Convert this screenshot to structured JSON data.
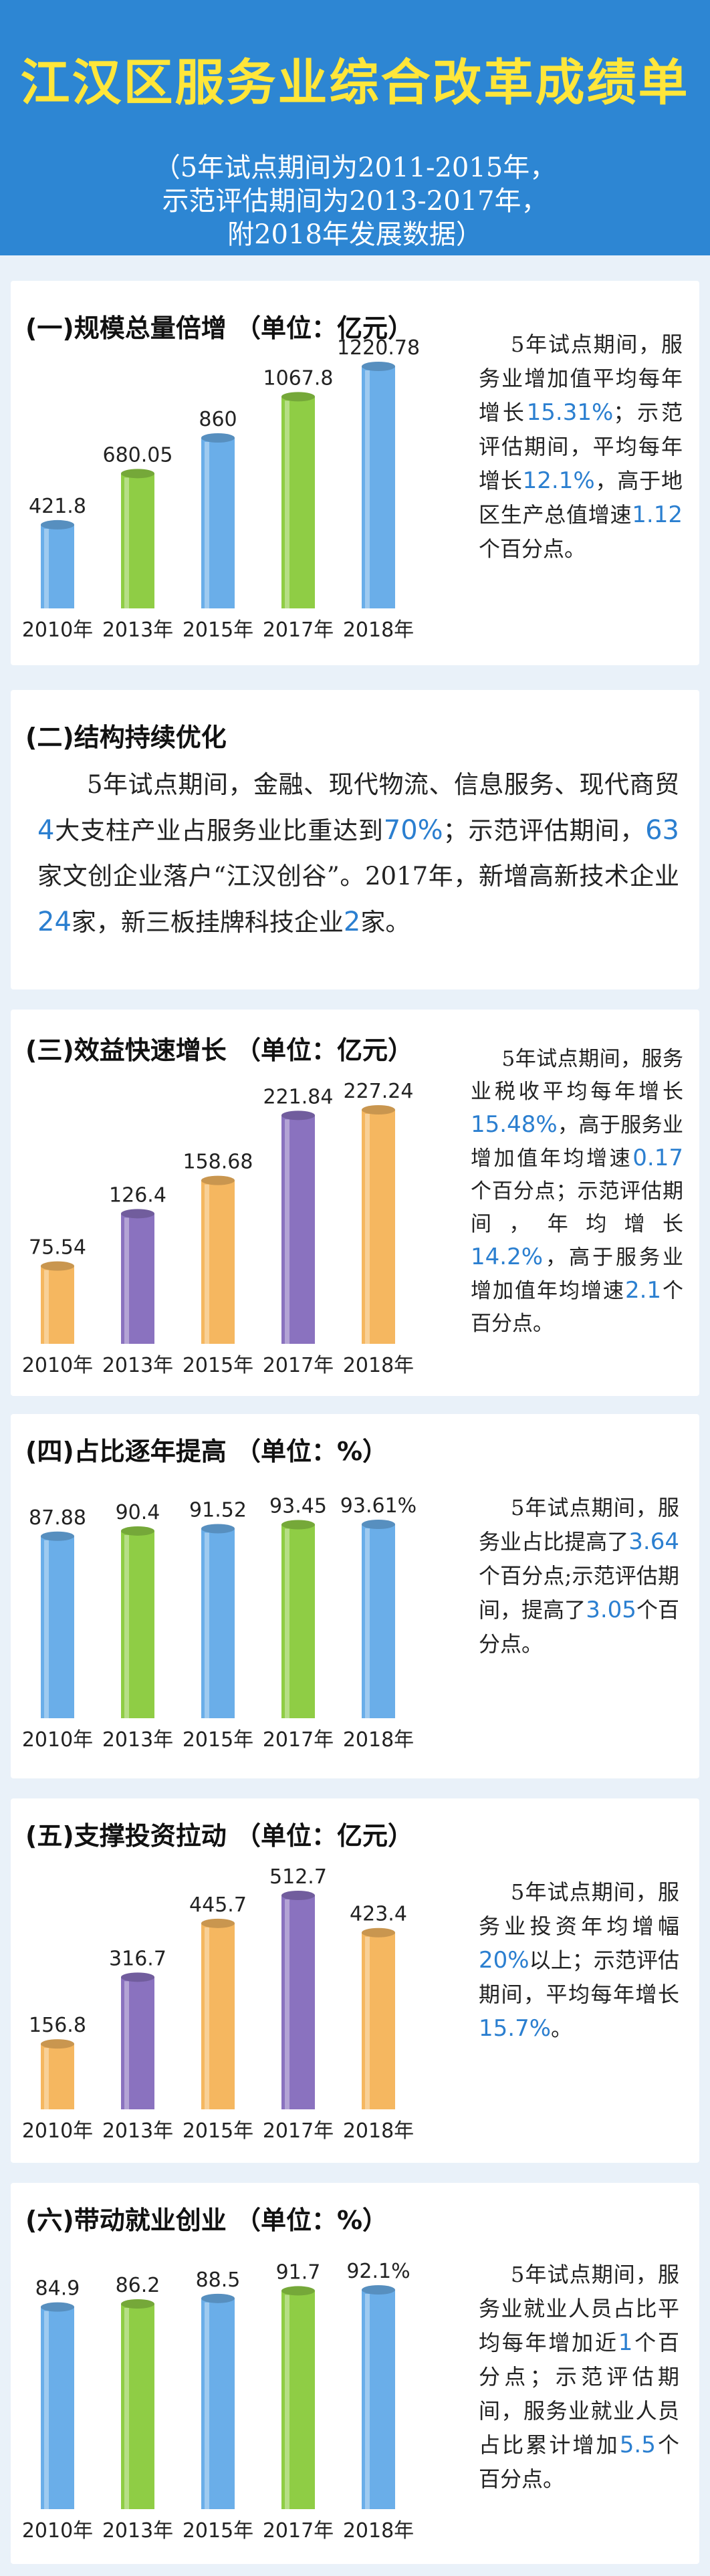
{
  "header": {
    "title": "江汉区服务业综合改革成绩单",
    "sub1": "（5年试点期间为2011-2015年，",
    "sub2": "示范评估期间为2013-2017年，",
    "sub3": "附2018年发展数据）"
  },
  "sections": [
    {
      "title": "(一)规模总量倍增  （单位：亿元）"
    },
    {
      "title": "(二)结构持续优化"
    },
    {
      "title": "(三)效益快速增长  （单位：亿元）"
    },
    {
      "title": "(四)占比逐年提高  （单位：%）"
    },
    {
      "title": "(五)支撑投资拉动  （单位：亿元）"
    },
    {
      "title": "(六)带动就业创业  （单位：%）"
    }
  ],
  "texts": {
    "s1": [
      "5年试点期间，服务业增加值平均每年增长",
      "15.31%",
      "；示范评估期间，平均每年增长",
      "12.1%",
      "，高于地区生产总值增速",
      "1.12",
      "个百分点。"
    ],
    "s2": [
      "5年试点期间，金融、现代物流、信息服务、现代商贸",
      "4",
      "大支柱产业占服务业比重达到",
      "70%",
      "；示范评估期间，",
      "63",
      "家文创企业落户“江汉创谷”。2017年，新增高新技术企业",
      "24",
      "家，新三板挂牌科技企业",
      "2",
      "家。"
    ],
    "s3": [
      "5年试点期间，服务业税收平均每年增长",
      "15.48%",
      "，高于服务业增加值年均增速",
      "0.17",
      "个百分点；示范评估期间，年均增长",
      "14.2%",
      "，高于服务业增加值年均增速",
      "2.1",
      "个百分点。"
    ],
    "s4": [
      "5年试点期间，服务业占比提高了",
      "3.64",
      "个百分点;示范评估期间，提高了",
      "3.05",
      "个百分点。"
    ],
    "s5": [
      "5年试点期间，服务业投资年均增幅",
      "20%",
      "以上；示范评估期间，平均每年增长",
      "15.7%",
      "。"
    ],
    "s6": [
      "5年试点期间，服务业就业人员占比平均每年增加近",
      "1",
      "个百分点；示范评估期间，服务业就业人员占比累计增加",
      "5.5",
      "个百分点。"
    ]
  },
  "colors": {
    "blue": "#6aaee9",
    "green": "#8fcd45",
    "orange": "#f5b760",
    "purple": "#8a72bf",
    "highlight": "#2b7fd0",
    "header": "#2d86d3",
    "title": "#ffe63a"
  },
  "chart_data": [
    {
      "type": "bar",
      "categories": [
        "2010年",
        "2013年",
        "2015年",
        "2017年",
        "2018年"
      ],
      "values": [
        421.8,
        680.05,
        860,
        1067.8,
        1220.78
      ],
      "labels": [
        "421.8",
        "680.05",
        "860",
        "1067.8",
        "1220.78"
      ],
      "colors": [
        "blue",
        "green",
        "blue",
        "green",
        "blue"
      ],
      "ylim": [
        0,
        1400
      ]
    },
    {
      "type": "bar",
      "categories": [
        "2010年",
        "2013年",
        "2015年",
        "2017年",
        "2018年"
      ],
      "values": [
        75.54,
        126.4,
        158.68,
        221.84,
        227.24
      ],
      "labels": [
        "75.54",
        "126.4",
        "158.68",
        "221.84",
        "227.24"
      ],
      "colors": [
        "orange",
        "purple",
        "orange",
        "purple",
        "orange"
      ],
      "ylim": [
        0,
        260
      ]
    },
    {
      "type": "bar",
      "categories": [
        "2010年",
        "2013年",
        "2015年",
        "2017年",
        "2018年"
      ],
      "values": [
        87.88,
        90.4,
        91.52,
        93.45,
        93.61
      ],
      "labels": [
        "87.88",
        "90.4",
        "91.52",
        "93.45",
        "93.61%"
      ],
      "colors": [
        "blue",
        "green",
        "blue",
        "green",
        "blue"
      ],
      "ylim": [
        0,
        100
      ]
    },
    {
      "type": "bar",
      "categories": [
        "2010年",
        "2013年",
        "2015年",
        "2017年",
        "2018年"
      ],
      "values": [
        156.8,
        316.7,
        445.7,
        512.7,
        423.4
      ],
      "labels": [
        "156.8",
        "316.7",
        "445.7",
        "512.7",
        "423.4"
      ],
      "colors": [
        "orange",
        "purple",
        "orange",
        "purple",
        "orange"
      ],
      "ylim": [
        0,
        580
      ]
    },
    {
      "type": "bar",
      "categories": [
        "2010年",
        "2013年",
        "2015年",
        "2017年",
        "2018年"
      ],
      "values": [
        84.9,
        86.2,
        88.5,
        91.7,
        92.1
      ],
      "labels": [
        "84.9",
        "86.2",
        "88.5",
        "91.7",
        "92.1%"
      ],
      "colors": [
        "blue",
        "green",
        "blue",
        "green",
        "blue"
      ],
      "ylim": [
        0,
        100
      ]
    }
  ]
}
